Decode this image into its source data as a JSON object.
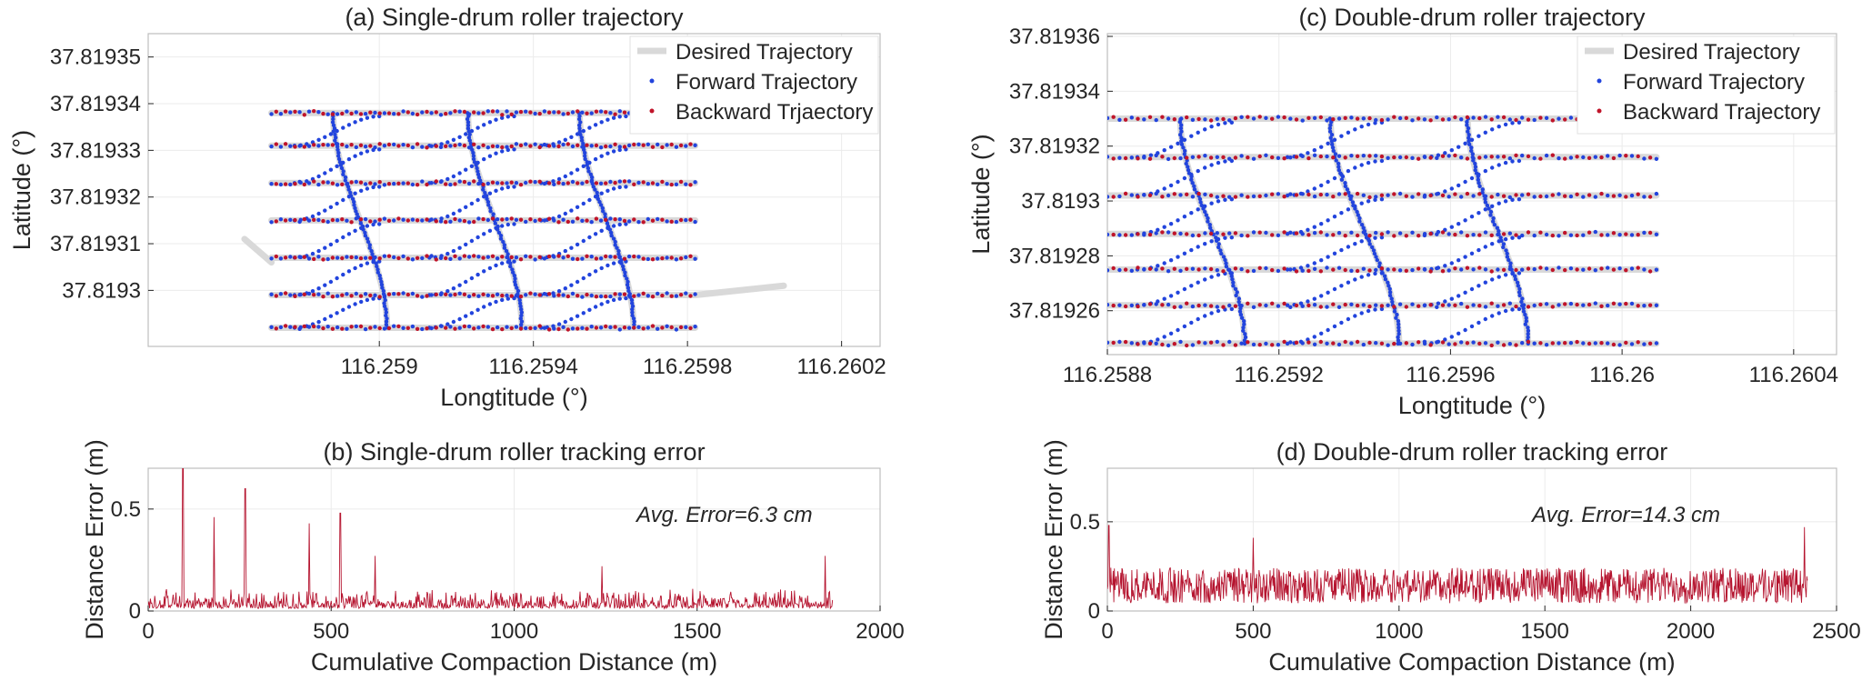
{
  "figure": {
    "panels": [
      "a",
      "b",
      "c",
      "d"
    ]
  },
  "colors": {
    "desired": "#d9d9d9",
    "forward": "#2244dd",
    "backward": "#c0142a",
    "error": "#b5142f",
    "axis": "#262626",
    "grid": "#ebebeb"
  },
  "chart_data": [
    {
      "id": "a",
      "type": "scatter",
      "title": "(a) Single-drum roller trajectory",
      "xlabel": "Longtitude (°)",
      "ylabel": "Latitude (°)",
      "xlim": [
        116.2584,
        116.2603
      ],
      "ylim": [
        37.819288,
        37.819355
      ],
      "xticks": [
        116.259,
        116.2594,
        116.2598,
        116.2602
      ],
      "xtick_labels": [
        "116.259",
        "116.2594",
        "116.2598",
        "116.2602"
      ],
      "yticks": [
        37.8193,
        37.81931,
        37.81932,
        37.81933,
        37.81934,
        37.81935
      ],
      "ytick_labels": [
        "37.8193",
        "37.81931",
        "37.81932",
        "37.81933",
        "37.81934",
        "37.81935"
      ],
      "legend": [
        "Desired Trajectory",
        "Forward Trajectory",
        "Backward Trjaectory"
      ],
      "legend_position": "top-right",
      "grid": true,
      "passes": {
        "x_start": 116.25872,
        "x_end": 116.25982,
        "y_start": [
          37.819292,
          37.819299,
          37.819307,
          37.819315,
          37.819323,
          37.819331,
          37.819338
        ],
        "slope": 1.86e-08,
        "extra": [
          {
            "from_x": 116.25865,
            "from_y": 37.819311,
            "to_x": 116.25872,
            "to_y": 37.819306
          },
          {
            "from_x": 116.25982,
            "from_y": 37.819299,
            "to_x": 116.26005,
            "to_y": 37.819301
          }
        ]
      },
      "crossings": [
        {
          "x_top": 116.25888,
          "x_bottom": 116.25902
        },
        {
          "x_top": 116.25923,
          "x_bottom": 116.25937
        },
        {
          "x_top": 116.25952,
          "x_bottom": 116.25966
        }
      ]
    },
    {
      "id": "b",
      "type": "line",
      "title": "(b) Single-drum roller tracking error",
      "xlabel": "Cumulative Compaction Distance (m)",
      "ylabel": "Distance Error (m)",
      "xlim": [
        0,
        2000
      ],
      "ylim": [
        0,
        0.7
      ],
      "xticks": [
        0,
        500,
        1000,
        1500,
        2000
      ],
      "xtick_labels": [
        "0",
        "500",
        "1000",
        "1500",
        "2000"
      ],
      "yticks": [
        0,
        0.5
      ],
      "ytick_labels": [
        "0",
        "0.5"
      ],
      "annotation": "Avg. Error=6.3 cm",
      "series_length": 1870,
      "baseline_error": 0.063,
      "spikes": [
        [
          95,
          0.7
        ],
        [
          180,
          0.46
        ],
        [
          265,
          0.6
        ],
        [
          440,
          0.43
        ],
        [
          525,
          0.48
        ],
        [
          620,
          0.27
        ],
        [
          1240,
          0.22
        ],
        [
          1850,
          0.27
        ]
      ],
      "grid": true
    },
    {
      "id": "c",
      "type": "scatter",
      "title": "(c) Double-drum roller trajectory",
      "xlabel": "Longtitude (°)",
      "ylabel": "Latitude (°)",
      "xlim": [
        116.2588,
        116.2605
      ],
      "ylim": [
        37.819244,
        37.819361
      ],
      "xticks": [
        116.2588,
        116.2592,
        116.2596,
        116.26,
        116.2604
      ],
      "xtick_labels": [
        "116.2588",
        "116.2592",
        "116.2596",
        "116.26",
        "116.2604"
      ],
      "yticks": [
        37.81926,
        37.81928,
        37.8193,
        37.81932,
        37.81934,
        37.81936
      ],
      "ytick_labels": [
        "37.81926",
        "37.81928",
        "37.8193",
        "37.81932",
        "37.81934",
        "37.81936"
      ],
      "legend": [
        "Desired Trajectory",
        "Forward Trajectory",
        "Backward Trajectory"
      ],
      "legend_position": "top-right",
      "grid": true,
      "passes": {
        "x_start": 116.2588,
        "x_end": 116.26008,
        "y_start": [
          37.819248,
          37.819262,
          37.819275,
          37.819288,
          37.819302,
          37.819316,
          37.81933
        ],
        "slope": 2.15e-08,
        "extra": []
      },
      "crossings": [
        {
          "x_top": 116.25897,
          "x_bottom": 116.25912
        },
        {
          "x_top": 116.25932,
          "x_bottom": 116.25948
        },
        {
          "x_top": 116.25964,
          "x_bottom": 116.25978
        }
      ]
    },
    {
      "id": "d",
      "type": "line",
      "title": "(d) Double-drum roller tracking error",
      "xlabel": "Cumulative Compaction Distance (m)",
      "ylabel": "Distance Error (m)",
      "xlim": [
        0,
        2500
      ],
      "ylim": [
        0,
        0.8
      ],
      "xticks": [
        0,
        500,
        1000,
        1500,
        2000,
        2500
      ],
      "xtick_labels": [
        "0",
        "500",
        "1000",
        "1500",
        "2000",
        "2500"
      ],
      "yticks": [
        0,
        0.5
      ],
      "ytick_labels": [
        "0",
        "0.5"
      ],
      "annotation": "Avg. Error=14.3 cm",
      "series_length": 2400,
      "baseline_error": 0.143,
      "spikes": [
        [
          5,
          0.48
        ],
        [
          500,
          0.41
        ],
        [
          2390,
          0.47
        ]
      ],
      "grid": true
    }
  ]
}
